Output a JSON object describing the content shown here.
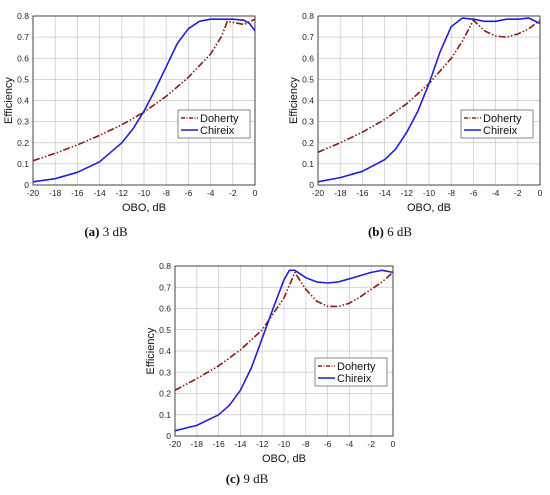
{
  "chart_data": [
    {
      "type": "line",
      "caption_tag": "(a)",
      "caption_text": "3 dB",
      "xlabel": "OBO, dB",
      "ylabel": "Efficiency",
      "xlim": [
        -20,
        0
      ],
      "ylim": [
        0,
        0.8
      ],
      "xticks": [
        "-20",
        "-18",
        "-16",
        "-14",
        "-12",
        "-10",
        "-8",
        "-6",
        "-4",
        "-2",
        "0"
      ],
      "yticks": [
        "0",
        "0.1",
        "0.2",
        "0.3",
        "0.4",
        "0.5",
        "0.6",
        "0.7",
        "0.8"
      ],
      "grid": true,
      "legend_position": "right-middle",
      "series": [
        {
          "name": "Doherty",
          "color": "#8b1a10",
          "style": "dash-dot-dot",
          "x": [
            -20,
            -18,
            -16,
            -14,
            -12,
            -10,
            -8,
            -6,
            -4,
            -3,
            -2.5,
            -2,
            -1,
            0
          ],
          "y": [
            0.115,
            0.15,
            0.19,
            0.235,
            0.285,
            0.345,
            0.42,
            0.51,
            0.62,
            0.705,
            0.775,
            0.77,
            0.76,
            0.785
          ]
        },
        {
          "name": "Chireix",
          "color": "#1f1fd6",
          "style": "solid",
          "x": [
            -20,
            -18,
            -16,
            -14,
            -12,
            -11,
            -10,
            -9,
            -8,
            -7,
            -6,
            -5,
            -4,
            -3,
            -2,
            -1,
            -0.5,
            0
          ],
          "y": [
            0.015,
            0.03,
            0.06,
            0.11,
            0.2,
            0.265,
            0.35,
            0.45,
            0.56,
            0.67,
            0.74,
            0.775,
            0.785,
            0.785,
            0.785,
            0.78,
            0.765,
            0.73
          ]
        }
      ]
    },
    {
      "type": "line",
      "caption_tag": "(b)",
      "caption_text": "6 dB",
      "xlabel": "OBO, dB",
      "ylabel": "Efficiency",
      "xlim": [
        -20,
        0
      ],
      "ylim": [
        0,
        0.8
      ],
      "xticks": [
        "-20",
        "-18",
        "-16",
        "-14",
        "-12",
        "-10",
        "-8",
        "-6",
        "-4",
        "-2",
        "0"
      ],
      "yticks": [
        "0",
        "0.1",
        "0.2",
        "0.3",
        "0.4",
        "0.5",
        "0.6",
        "0.7",
        "0.8"
      ],
      "grid": true,
      "legend_position": "right-middle",
      "series": [
        {
          "name": "Doherty",
          "color": "#8b1a10",
          "style": "dash-dot-dot",
          "x": [
            -20,
            -18,
            -16,
            -14,
            -12,
            -10,
            -8,
            -7,
            -6,
            -5,
            -4,
            -3,
            -2,
            -1,
            0
          ],
          "y": [
            0.155,
            0.2,
            0.25,
            0.31,
            0.385,
            0.48,
            0.6,
            0.68,
            0.78,
            0.73,
            0.705,
            0.7,
            0.715,
            0.74,
            0.78
          ]
        },
        {
          "name": "Chireix",
          "color": "#1f1fd6",
          "style": "solid",
          "x": [
            -20,
            -18,
            -16,
            -14,
            -13,
            -12,
            -11,
            -10,
            -9,
            -8,
            -7,
            -6,
            -5,
            -4,
            -3,
            -2,
            -1,
            0
          ],
          "y": [
            0.015,
            0.035,
            0.065,
            0.12,
            0.17,
            0.25,
            0.35,
            0.48,
            0.63,
            0.75,
            0.79,
            0.785,
            0.775,
            0.775,
            0.785,
            0.785,
            0.79,
            0.765
          ]
        }
      ]
    },
    {
      "type": "line",
      "caption_tag": "(c)",
      "caption_text": "9 dB",
      "xlabel": "OBO, dB",
      "ylabel": "Efficiency",
      "xlim": [
        -20,
        0
      ],
      "ylim": [
        0,
        0.8
      ],
      "xticks": [
        "-20",
        "-18",
        "-16",
        "-14",
        "-12",
        "-10",
        "-8",
        "-6",
        "-4",
        "-2",
        "0"
      ],
      "yticks": [
        "0",
        "0.1",
        "0.2",
        "0.3",
        "0.4",
        "0.5",
        "0.6",
        "0.7",
        "0.8"
      ],
      "grid": true,
      "legend_position": "right-bottom",
      "series": [
        {
          "name": "Doherty",
          "color": "#8b1a10",
          "style": "dash-dot-dot",
          "x": [
            -20,
            -18,
            -16,
            -14,
            -12,
            -10,
            -9,
            -8,
            -7,
            -6,
            -5,
            -4,
            -3,
            -2,
            -1,
            0
          ],
          "y": [
            0.215,
            0.27,
            0.33,
            0.405,
            0.5,
            0.65,
            0.77,
            0.69,
            0.635,
            0.61,
            0.61,
            0.625,
            0.655,
            0.69,
            0.725,
            0.77
          ]
        },
        {
          "name": "Chireix",
          "color": "#1f1fd6",
          "style": "solid",
          "x": [
            -20,
            -18,
            -16,
            -15,
            -14,
            -13,
            -12,
            -11,
            -10,
            -9.5,
            -9,
            -8,
            -7,
            -6,
            -5,
            -4,
            -3,
            -2,
            -1,
            0
          ],
          "y": [
            0.025,
            0.05,
            0.1,
            0.145,
            0.215,
            0.32,
            0.46,
            0.6,
            0.735,
            0.78,
            0.78,
            0.745,
            0.725,
            0.72,
            0.725,
            0.74,
            0.755,
            0.77,
            0.78,
            0.77
          ]
        }
      ]
    }
  ]
}
